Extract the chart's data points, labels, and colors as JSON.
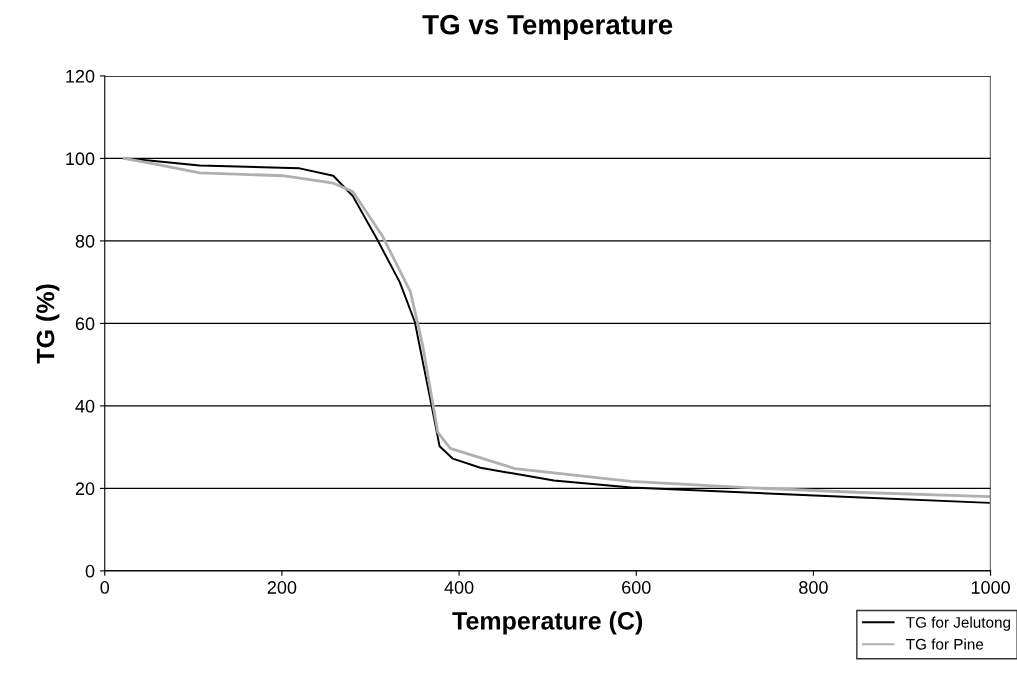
{
  "chart_data": {
    "type": "line",
    "title": "TG vs Temperature",
    "xlabel": "Temperature (C)",
    "ylabel": "TG (%)",
    "series": [
      {
        "name": "TG for Jelutong",
        "color": "#000000",
        "x": [
          22,
          50,
          107,
          220,
          258,
          280,
          307,
          333,
          350,
          369,
          378,
          393,
          424,
          507,
          594,
          724,
          854,
          998
        ],
        "values": [
          100,
          99.5,
          98.3,
          97.6,
          95.8,
          90.9,
          80.6,
          70,
          60.4,
          40,
          30.2,
          27.2,
          25,
          21.9,
          20.2,
          19,
          17.8,
          16.5
        ]
      },
      {
        "name": "TG for Pine",
        "color": "#b0b0b0",
        "x": [
          22,
          60,
          107,
          201,
          258,
          280,
          314,
          345,
          359,
          376,
          390,
          463,
          594,
          724,
          854,
          998
        ],
        "values": [
          100,
          98.5,
          96.5,
          95.8,
          94,
          92,
          81,
          67.7,
          54.6,
          33.6,
          29.7,
          24.8,
          21.7,
          20.2,
          19,
          18
        ]
      }
    ],
    "xlim": [
      0,
      1000
    ],
    "xticks": [
      0,
      200,
      400,
      600,
      800,
      1000
    ],
    "ylim": [
      0,
      120
    ],
    "yticks": [
      0,
      20,
      40,
      60,
      80,
      100,
      120
    ],
    "grid": "y",
    "legend": "bottom right",
    "marker": "none",
    "line_style": "solid"
  }
}
